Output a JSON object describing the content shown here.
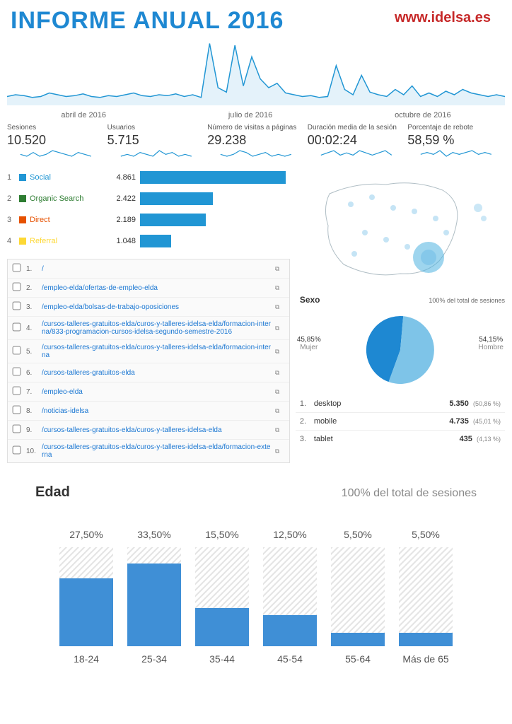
{
  "header": {
    "title": "INFORME ANUAL 2016",
    "title_color": "#1e88d2",
    "site_url": "www.idelsa.es",
    "site_url_color": "#c62828"
  },
  "timeline": {
    "stroke": "#2196d4",
    "x_labels": [
      "abril de 2016",
      "julio de 2016",
      "octubre de 2016"
    ],
    "points": [
      10,
      12,
      11,
      9,
      10,
      14,
      12,
      10,
      11,
      13,
      10,
      9,
      11,
      10,
      12,
      14,
      11,
      10,
      12,
      11,
      13,
      10,
      12,
      9,
      70,
      20,
      15,
      68,
      22,
      55,
      30,
      20,
      25,
      14,
      12,
      10,
      11,
      9,
      10,
      45,
      18,
      12,
      34,
      15,
      12,
      10,
      18,
      12,
      22,
      10,
      14,
      10,
      16,
      12,
      18,
      14,
      12,
      10,
      12,
      10
    ],
    "y_max": 80
  },
  "metrics": [
    {
      "label": "Sesiones",
      "value": "10.520",
      "spark": [
        4,
        3,
        5,
        3,
        4,
        6,
        5,
        4,
        3,
        5,
        4,
        3
      ]
    },
    {
      "label": "Usuarios",
      "value": "5.715",
      "spark": [
        3,
        4,
        3,
        5,
        4,
        3,
        6,
        4,
        5,
        3,
        4,
        3
      ]
    },
    {
      "label": "Número de visitas a páginas",
      "value": "29.238",
      "spark": [
        4,
        3,
        4,
        6,
        5,
        3,
        4,
        5,
        3,
        4,
        3,
        4
      ]
    },
    {
      "label": "Duración media de la sesión",
      "value": "00:02:24",
      "spark": [
        3,
        4,
        5,
        3,
        4,
        3,
        5,
        4,
        3,
        4,
        5,
        3
      ]
    },
    {
      "label": "Porcentaje de rebote",
      "value": "58,59 %",
      "spark": [
        4,
        5,
        4,
        6,
        3,
        5,
        4,
        5,
        6,
        4,
        5,
        4
      ]
    }
  ],
  "spark_color": "#2196d4",
  "channels": {
    "max": 5000,
    "bar_color": "#2196d4",
    "items": [
      {
        "rank": "1",
        "name": "Social",
        "color": "#2196d4",
        "count": "4.861",
        "val": 4861
      },
      {
        "rank": "2",
        "name": "Organic Search",
        "color": "#2e7d32",
        "count": "2.422",
        "val": 2422
      },
      {
        "rank": "3",
        "name": "Direct",
        "color": "#e65100",
        "count": "2.189",
        "val": 2189
      },
      {
        "rank": "4",
        "name": "Referral",
        "color": "#fdd835",
        "count": "1.048",
        "val": 1048
      }
    ]
  },
  "pages": [
    {
      "n": "1.",
      "url": "/"
    },
    {
      "n": "2.",
      "url": "/empleo-elda/ofertas-de-empleo-elda"
    },
    {
      "n": "3.",
      "url": "/empleo-elda/bolsas-de-trabajo-oposiciones"
    },
    {
      "n": "4.",
      "url": "/cursos-talleres-gratuitos-elda/curos-y-talleres-idelsa-elda/formacion-interna/833-programacion-cursos-idelsa-segundo-semestre-2016"
    },
    {
      "n": "5.",
      "url": "/cursos-talleres-gratuitos-elda/curos-y-talleres-idelsa-elda/formacion-interna"
    },
    {
      "n": "6.",
      "url": "/cursos-talleres-gratuitos-elda"
    },
    {
      "n": "7.",
      "url": "/empleo-elda"
    },
    {
      "n": "8.",
      "url": "/noticias-idelsa"
    },
    {
      "n": "9.",
      "url": "/cursos-talleres-gratuitos-elda/curos-y-talleres-idelsa-elda"
    },
    {
      "n": "10.",
      "url": "/cursos-talleres-gratuitos-elda/curos-y-talleres-idelsa-elda/formacion-externa"
    }
  ],
  "sex": {
    "title": "Sexo",
    "subtitle": "100% del total de sesiones",
    "female": {
      "pct": "45,85%",
      "label": "Mujer",
      "color": "#1e88d2",
      "val": 45.85
    },
    "male": {
      "pct": "54,15%",
      "label": "Hombre",
      "color": "#7ec4e8",
      "val": 54.15
    }
  },
  "devices": [
    {
      "n": "1.",
      "name": "desktop",
      "value": "5.350",
      "pct": "(50,86 %)"
    },
    {
      "n": "2.",
      "name": "mobile",
      "value": "4.735",
      "pct": "(45,01 %)"
    },
    {
      "n": "3.",
      "name": "tablet",
      "value": "435",
      "pct": "(4,13 %)"
    }
  ],
  "map": {
    "outline": "#b0bec5",
    "dot_color": "#7ec4e8",
    "big_dot_color": "#4fb3e0"
  },
  "age": {
    "title": "Edad",
    "subtitle": "100% del total de sesiones",
    "fill_color": "#3f8fd6",
    "max_scale": 40,
    "items": [
      {
        "pct": "27,50%",
        "label": "18-24",
        "val": 27.5
      },
      {
        "pct": "33,50%",
        "label": "25-34",
        "val": 33.5
      },
      {
        "pct": "15,50%",
        "label": "35-44",
        "val": 15.5
      },
      {
        "pct": "12,50%",
        "label": "45-54",
        "val": 12.5
      },
      {
        "pct": "5,50%",
        "label": "55-64",
        "val": 5.5
      },
      {
        "pct": "5,50%",
        "label": "Más de 65",
        "val": 5.5
      }
    ]
  }
}
